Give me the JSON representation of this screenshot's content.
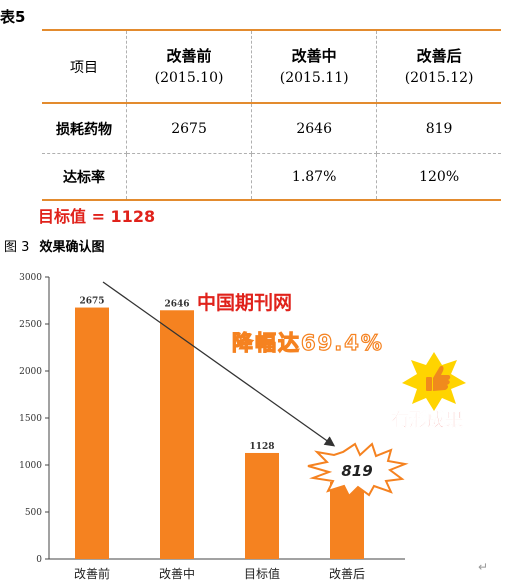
{
  "table_caption": "表5",
  "table": {
    "header": [
      "项目",
      "改善前",
      "(2015.10)",
      "改善中",
      "(2015.11)",
      "改善后",
      "(2015.12)"
    ],
    "rows": [
      {
        "label": "损耗药物",
        "values": [
          "2675",
          "2646",
          "819"
        ]
      },
      {
        "label": "达标率",
        "values": [
          "",
          "1.87%",
          "120%"
        ]
      }
    ]
  },
  "target_text": "目标值 = 1128",
  "figure_caption_num": "图 3",
  "figure_caption": "效果确认图",
  "overlays": {
    "watermark": "中国期刊网",
    "decrease": "降幅达69.4%",
    "result": "有形成果",
    "burst": "819"
  },
  "colors": {
    "bar": "#f58220",
    "accent": "#e38b2e",
    "red": "#e0221b"
  },
  "chart_data": {
    "type": "bar",
    "categories": [
      "改善前",
      "改善中",
      "目标值",
      "改善后"
    ],
    "values": [
      2675,
      2646,
      1128,
      819
    ],
    "data_labels": [
      "2675",
      "2646",
      "1128",
      ""
    ],
    "ylim": [
      0,
      3000
    ],
    "yticks": [
      "0",
      "500",
      "1000",
      "1500",
      "2000",
      "2500",
      "3000"
    ],
    "grid": false
  }
}
